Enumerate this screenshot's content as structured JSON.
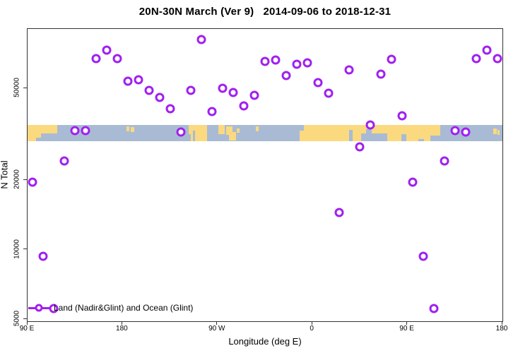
{
  "title": "20N-30N March (Ver 9)   2014-09-06 to 2018-12-31",
  "legend": {
    "label": "Land (Nadir&Glint) and Ocean (Glint)",
    "symbol": "open-circle-on-line"
  },
  "axes": {
    "x": {
      "label": "Longitude (deg E)",
      "range_degE": [
        90,
        540
      ],
      "ticks": [
        {
          "value": 90,
          "label": "90 E"
        },
        {
          "value": 180,
          "label": "180"
        },
        {
          "value": 270,
          "label": "90 W"
        },
        {
          "value": 360,
          "label": "0"
        },
        {
          "value": 450,
          "label": "90 E"
        },
        {
          "value": 540,
          "label": "180"
        }
      ]
    },
    "y": {
      "label": "N Total",
      "scale": "log",
      "ticks": [
        {
          "value": 5000,
          "label": "5000"
        },
        {
          "value": 10000,
          "label": "10000"
        },
        {
          "value": 20000,
          "label": "20000"
        },
        {
          "value": 50000,
          "label": "50000"
        }
      ]
    }
  },
  "colors": {
    "point": "#A020F0",
    "land": "#FBD97F",
    "ocean": "#A9BBD4",
    "axis": "#333333",
    "background": "#FFFFFF"
  },
  "map_band": {
    "description": "20N-30N latitude land/ocean strip map spanning 90E-540E",
    "land_segments": [
      {
        "lon": [
          90,
          118
        ],
        "t": [
          0,
          1
        ]
      },
      {
        "lon": [
          184,
          186.5
        ],
        "t": [
          0.1,
          0.4
        ]
      },
      {
        "lon": [
          188,
          191
        ],
        "t": [
          0.15,
          0.45
        ]
      },
      {
        "lon": [
          242.5,
          260
        ],
        "t": [
          0,
          1
        ]
      },
      {
        "lon": [
          271,
          277
        ],
        "t": [
          0,
          0.55
        ]
      },
      {
        "lon": [
          278,
          284.5
        ],
        "t": [
          0.1,
          0.6
        ]
      },
      {
        "lon": [
          281,
          287.5
        ],
        "t": [
          0.45,
          0.95
        ]
      },
      {
        "lon": [
          288,
          291
        ],
        "t": [
          0.2,
          0.5
        ]
      },
      {
        "lon": [
          306,
          309
        ],
        "t": [
          0.1,
          0.4
        ]
      },
      {
        "lon": [
          347.5,
          481
        ],
        "t": [
          0,
          1
        ]
      },
      {
        "lon": [
          531,
          534.5
        ],
        "t": [
          0.2,
          0.55
        ]
      },
      {
        "lon": [
          535.5,
          537.5
        ],
        "t": [
          0.3,
          0.6
        ]
      }
    ],
    "ocean_notches": [
      {
        "lon": [
          98,
          103
        ],
        "t": [
          0.78,
          1
        ]
      },
      {
        "lon": [
          103,
          118
        ],
        "t": [
          0.5,
          1
        ]
      },
      {
        "lon": [
          242.5,
          244.5
        ],
        "t": [
          0.55,
          1
        ]
      },
      {
        "lon": [
          246.5,
          249
        ],
        "t": [
          0.35,
          1
        ]
      },
      {
        "lon": [
          347.5,
          352
        ],
        "t": [
          0,
          0.35
        ]
      },
      {
        "lon": [
          394.5,
          398
        ],
        "t": [
          0.3,
          1
        ]
      },
      {
        "lon": [
          406,
          431
        ],
        "t": [
          0.5,
          1
        ]
      },
      {
        "lon": [
          410.5,
          416
        ],
        "t": [
          0.28,
          1
        ]
      },
      {
        "lon": [
          444,
          449
        ],
        "t": [
          0.55,
          1
        ]
      },
      {
        "lon": [
          460,
          466
        ],
        "t": [
          0.85,
          1
        ]
      },
      {
        "lon": [
          472,
          481
        ],
        "t": [
          0.65,
          1
        ]
      }
    ]
  },
  "chart_data": {
    "type": "scatter",
    "title": "20N-30N March (Ver 9)   2014-09-06 to 2018-12-31",
    "xlabel": "Longitude (deg E)",
    "ylabel": "N Total",
    "x_axis": {
      "range": [
        90,
        540
      ],
      "tick_values": [
        90,
        180,
        270,
        360,
        450,
        540
      ],
      "tick_labels": [
        "90 E",
        "180",
        "90 W",
        "0",
        "90 E",
        "180"
      ]
    },
    "y_axis": {
      "scale": "log",
      "range": [
        4700,
        92000
      ],
      "tick_values": [
        5000,
        10000,
        20000,
        50000
      ]
    },
    "grid": false,
    "legend_position": "bottom-left",
    "series": [
      {
        "name": "Land (Nadir&Glint) and Ocean (Glint)",
        "marker": "open-circle",
        "color": "#A020F0",
        "points": [
          {
            "lon": 95,
            "n": 19600
          },
          {
            "lon": 105,
            "n": 9360
          },
          {
            "lon": 115,
            "n": 5540
          },
          {
            "lon": 125,
            "n": 24200
          },
          {
            "lon": 135,
            "n": 32800
          },
          {
            "lon": 145,
            "n": 32800
          },
          {
            "lon": 155,
            "n": 67200
          },
          {
            "lon": 165,
            "n": 73100
          },
          {
            "lon": 175,
            "n": 67200
          },
          {
            "lon": 185,
            "n": 53700
          },
          {
            "lon": 195,
            "n": 54500
          },
          {
            "lon": 205,
            "n": 48900
          },
          {
            "lon": 215,
            "n": 45600
          },
          {
            "lon": 225,
            "n": 40800
          },
          {
            "lon": 235,
            "n": 32300
          },
          {
            "lon": 245,
            "n": 48900
          },
          {
            "lon": 255,
            "n": 81400
          },
          {
            "lon": 265,
            "n": 39700
          },
          {
            "lon": 275,
            "n": 50000
          },
          {
            "lon": 285,
            "n": 48000
          },
          {
            "lon": 295,
            "n": 41900
          },
          {
            "lon": 305,
            "n": 46600
          },
          {
            "lon": 315,
            "n": 65300
          },
          {
            "lon": 325,
            "n": 66200
          },
          {
            "lon": 335,
            "n": 56800
          },
          {
            "lon": 345,
            "n": 63600
          },
          {
            "lon": 355,
            "n": 64400
          },
          {
            "lon": 365,
            "n": 52900
          },
          {
            "lon": 375,
            "n": 47600
          },
          {
            "lon": 385,
            "n": 14500
          },
          {
            "lon": 395,
            "n": 60000
          },
          {
            "lon": 405,
            "n": 27900
          },
          {
            "lon": 415,
            "n": 34700
          },
          {
            "lon": 425,
            "n": 57400
          },
          {
            "lon": 435,
            "n": 66700
          },
          {
            "lon": 445,
            "n": 38000
          },
          {
            "lon": 455,
            "n": 19600
          },
          {
            "lon": 465,
            "n": 9360
          },
          {
            "lon": 475,
            "n": 5560
          },
          {
            "lon": 485,
            "n": 24200
          },
          {
            "lon": 495,
            "n": 32800
          },
          {
            "lon": 505,
            "n": 32300
          },
          {
            "lon": 515,
            "n": 67200
          },
          {
            "lon": 525,
            "n": 73100
          },
          {
            "lon": 535,
            "n": 67200
          }
        ]
      }
    ]
  }
}
